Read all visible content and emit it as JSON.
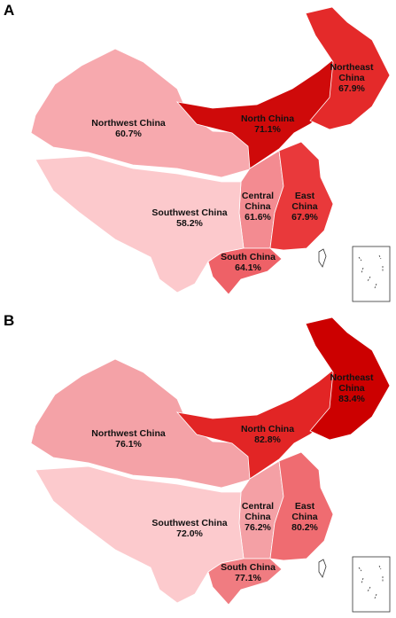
{
  "panels": [
    {
      "label": "A",
      "regions": [
        {
          "name": "Northwest China",
          "value": 60.7,
          "value_label": "60.7%",
          "color": "#f7a9ae"
        },
        {
          "name": "North China",
          "value": 71.1,
          "value_label": "71.1%",
          "color": "#cf0a0a"
        },
        {
          "name": "Northeast China",
          "value": 67.9,
          "value_label": "67.9%",
          "color": "#e42a2a"
        },
        {
          "name": "Central China",
          "value": 61.6,
          "value_label": "61.6%",
          "color": "#f38b91"
        },
        {
          "name": "East China",
          "value": 67.9,
          "value_label": "67.9%",
          "color": "#e9393b"
        },
        {
          "name": "Southwest China",
          "value": 58.2,
          "value_label": "58.2%",
          "color": "#fcc9cc"
        },
        {
          "name": "South China",
          "value": 64.1,
          "value_label": "64.1%",
          "color": "#ee6167"
        }
      ]
    },
    {
      "label": "B",
      "regions": [
        {
          "name": "Northwest China",
          "value": 76.1,
          "value_label": "76.1%",
          "color": "#f4a2a7"
        },
        {
          "name": "North China",
          "value": 82.8,
          "value_label": "82.8%",
          "color": "#e22525"
        },
        {
          "name": "Northeast China",
          "value": 83.4,
          "value_label": "83.4%",
          "color": "#cc0000"
        },
        {
          "name": "Central China",
          "value": 76.2,
          "value_label": "76.2%",
          "color": "#f4a0a5"
        },
        {
          "name": "East China",
          "value": 80.2,
          "value_label": "80.2%",
          "color": "#ef6c71"
        },
        {
          "name": "Southwest China",
          "value": 72.0,
          "value_label": "72.0%",
          "color": "#fccacd"
        },
        {
          "name": "South China",
          "value": 77.1,
          "value_label": "77.1%",
          "color": "#f07c81"
        }
      ]
    }
  ]
}
